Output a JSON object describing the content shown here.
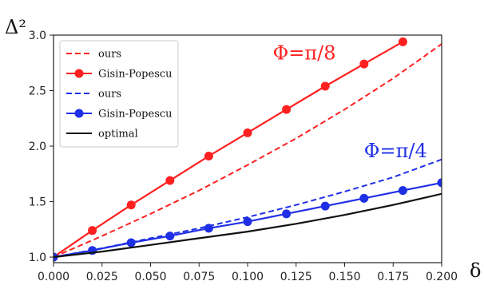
{
  "chart_data": {
    "type": "line",
    "xlabel": "δ",
    "ylabel": "Δ²",
    "xlim": [
      0.0,
      0.2
    ],
    "ylim": [
      0.95,
      3.0
    ],
    "xticks": [
      "0.000",
      "0.025",
      "0.050",
      "0.075",
      "0.100",
      "0.125",
      "0.150",
      "0.175",
      "0.200"
    ],
    "yticks": [
      "1.0",
      "1.5",
      "2.0",
      "2.5",
      "3.0"
    ],
    "legend_position": "top-left",
    "grid": false,
    "series": [
      {
        "name": "ours",
        "color": "#ff2020",
        "style": "dashed",
        "x": [
          0.0,
          0.025,
          0.05,
          0.075,
          0.1,
          0.125,
          0.15,
          0.175,
          0.2
        ],
        "y": [
          1.0,
          1.19,
          1.39,
          1.6,
          1.83,
          2.07,
          2.33,
          2.61,
          2.92
        ]
      },
      {
        "name": "Gisin-Popescu",
        "color": "#ff2020",
        "style": "solid",
        "markers": true,
        "x": [
          0.0,
          0.02,
          0.04,
          0.06,
          0.08,
          0.1,
          0.12,
          0.14,
          0.16,
          0.18
        ],
        "y": [
          1.0,
          1.24,
          1.47,
          1.69,
          1.91,
          2.12,
          2.33,
          2.54,
          2.74,
          2.94
        ]
      },
      {
        "name": "ours",
        "color": "#1f2fe6",
        "style": "dashed",
        "x": [
          0.0,
          0.025,
          0.05,
          0.075,
          0.1,
          0.125,
          0.15,
          0.175,
          0.2
        ],
        "y": [
          1.0,
          1.08,
          1.17,
          1.26,
          1.36,
          1.47,
          1.59,
          1.72,
          1.88
        ]
      },
      {
        "name": "Gisin-Popescu",
        "color": "#1f2fe6",
        "style": "solid",
        "markers": true,
        "x": [
          0.0,
          0.02,
          0.04,
          0.06,
          0.08,
          0.1,
          0.12,
          0.14,
          0.16,
          0.18,
          0.2
        ],
        "y": [
          1.0,
          1.06,
          1.13,
          1.19,
          1.26,
          1.32,
          1.39,
          1.46,
          1.53,
          1.6,
          1.67
        ]
      },
      {
        "name": "optimal",
        "color": "#111111",
        "style": "solid",
        "x": [
          0.0,
          0.025,
          0.05,
          0.075,
          0.1,
          0.125,
          0.15,
          0.175,
          0.2
        ],
        "y": [
          1.0,
          1.05,
          1.11,
          1.17,
          1.23,
          1.3,
          1.38,
          1.47,
          1.57
        ]
      }
    ],
    "annotations": [
      {
        "text": "Φ=π/8",
        "color": "#ff2020",
        "x": 0.113,
        "y": 2.78
      },
      {
        "text": "Φ=π/4",
        "color": "#1f2fe6",
        "x": 0.16,
        "y": 1.9
      }
    ]
  }
}
